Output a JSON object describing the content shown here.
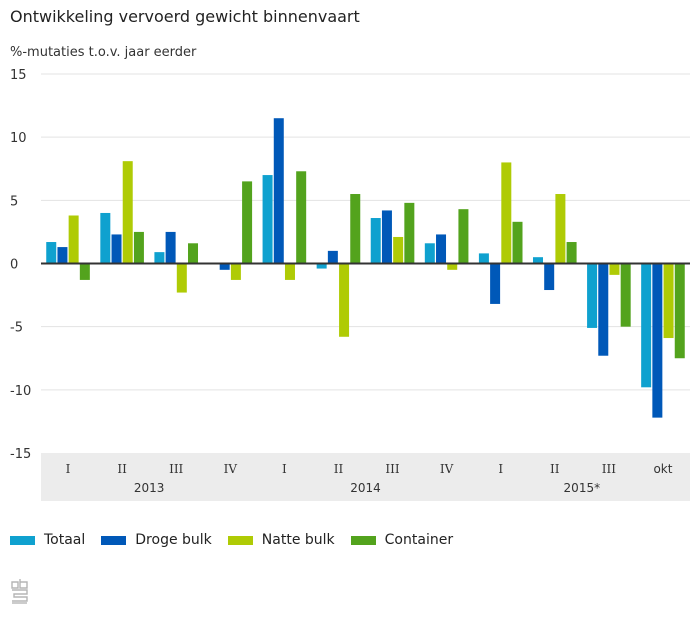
{
  "title": "Ontwikkeling vervoerd gewicht binnenvaart",
  "subtitle": "%-mutaties t.o.v. jaar eerder",
  "logo": "cbs-logo",
  "chart_data": {
    "type": "bar",
    "title": "Ontwikkeling vervoerd gewicht binnenvaart",
    "ylabel": "%-mutaties t.o.v. jaar eerder",
    "xlabel": "",
    "ylim": [
      -15,
      15
    ],
    "yticks": [
      15,
      10,
      5,
      0,
      -5,
      -10,
      -15
    ],
    "grid": true,
    "legend_position": "bottom-left",
    "categories": [
      "I",
      "II",
      "III",
      "IV",
      "I",
      "II",
      "III",
      "IV",
      "I",
      "II",
      "III",
      "okt"
    ],
    "year_groups": [
      {
        "label": "2013",
        "start": 0,
        "end": 3
      },
      {
        "label": "2014",
        "start": 4,
        "end": 7
      },
      {
        "label": "2015*",
        "start": 8,
        "end": 11
      }
    ],
    "series": [
      {
        "name": "Totaal",
        "color": "#0fa1cf",
        "values": [
          1.7,
          4.0,
          0.9,
          0.0,
          7.0,
          -0.4,
          3.6,
          1.6,
          0.8,
          0.5,
          -5.1,
          -9.8
        ]
      },
      {
        "name": "Droge bulk",
        "color": "#0058b8",
        "values": [
          1.3,
          2.3,
          2.5,
          -0.5,
          11.5,
          1.0,
          4.2,
          2.3,
          -3.2,
          -2.1,
          -7.3,
          -12.2
        ]
      },
      {
        "name": "Natte bulk",
        "color": "#afcb05",
        "values": [
          3.8,
          8.1,
          -2.3,
          -1.3,
          -1.3,
          -5.8,
          2.1,
          -0.5,
          8.0,
          5.5,
          -0.9,
          -5.9
        ]
      },
      {
        "name": "Container",
        "color": "#53a31d",
        "values": [
          -1.3,
          2.5,
          1.6,
          6.5,
          7.3,
          5.5,
          4.8,
          4.3,
          3.3,
          1.7,
          -5.0,
          -7.5
        ]
      }
    ]
  }
}
